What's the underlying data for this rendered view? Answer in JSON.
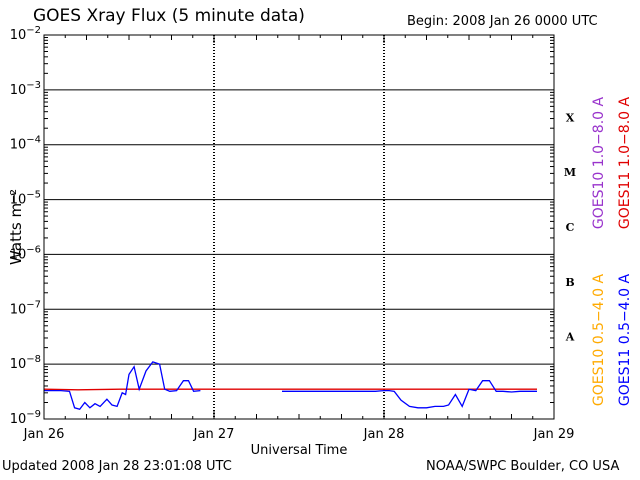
{
  "header": {
    "title": "GOES Xray Flux (5 minute data)",
    "begin": "Begin:  2008 Jan 26 0000 UTC"
  },
  "footer": {
    "updated": "Updated 2008 Jan 28 23:01:08 UTC",
    "credit": "NOAA/SWPC Boulder, CO USA"
  },
  "chart_data": {
    "type": "line",
    "xlabel": "Universal Time",
    "ylabel": "Watts m⁻²",
    "y_scale": "log",
    "ylim": [
      1e-09,
      0.01
    ],
    "xlim": [
      0,
      3
    ],
    "x_ticks": [
      {
        "x": 0,
        "label": "Jan 26"
      },
      {
        "x": 1,
        "label": "Jan 27"
      },
      {
        "x": 2,
        "label": "Jan 28"
      },
      {
        "x": 3,
        "label": "Jan 29"
      }
    ],
    "y_ticks": [
      {
        "exp": -2,
        "base": "10",
        "sup": "−2"
      },
      {
        "exp": -3,
        "base": "10",
        "sup": "−3"
      },
      {
        "exp": -4,
        "base": "10",
        "sup": "−4"
      },
      {
        "exp": -5,
        "base": "10",
        "sup": "−5"
      },
      {
        "exp": -6,
        "base": "10",
        "sup": "−6"
      },
      {
        "exp": -7,
        "base": "10",
        "sup": "−7"
      },
      {
        "exp": -8,
        "base": "10",
        "sup": "−8"
      },
      {
        "exp": -9,
        "base": "10",
        "sup": "−9"
      }
    ],
    "flare_classes": [
      {
        "label": "X",
        "exp": -4
      },
      {
        "label": "M",
        "exp": -5
      },
      {
        "label": "C",
        "exp": -6
      },
      {
        "label": "B",
        "exp": -7
      },
      {
        "label": "A",
        "exp": -8
      }
    ],
    "legend": [
      {
        "label": "GOES10 1.0−8.0 A",
        "color": "#9933cc"
      },
      {
        "label": "GOES11 1.0−8.0 A",
        "color": "#e00000"
      },
      {
        "label": "GOES10 0.5−4.0 A",
        "color": "#ffaa00"
      },
      {
        "label": "GOES11 0.5−4.0 A",
        "color": "#0000ff"
      }
    ],
    "series": [
      {
        "name": "GOES11 1.0−8.0 A",
        "color": "#e00000",
        "x": [
          0.0,
          0.2,
          0.45,
          0.8,
          1.2,
          1.6,
          2.0,
          2.4,
          2.9
        ],
        "y": [
          3.5e-09,
          3.4e-09,
          3.5e-09,
          3.5e-09,
          3.5e-09,
          3.5e-09,
          3.5e-09,
          3.5e-09,
          3.5e-09
        ]
      },
      {
        "name": "GOES11 0.5−4.0 A",
        "color": "#0000ff",
        "x": [
          0.0,
          0.05,
          0.1,
          0.15,
          0.18,
          0.21,
          0.24,
          0.27,
          0.3,
          0.33,
          0.37,
          0.4,
          0.43,
          0.46,
          0.48,
          0.5,
          0.53,
          0.56,
          0.6,
          0.64,
          0.68,
          0.71,
          0.74,
          0.78,
          0.82,
          0.85,
          0.88,
          0.92,
          0.95,
          0.98,
          1.0,
          1.05,
          1.1,
          1.15,
          1.2,
          1.25,
          1.3,
          1.35,
          1.4,
          1.45,
          1.5,
          1.55,
          1.6,
          1.65,
          1.7,
          1.75,
          1.8,
          1.85,
          1.9,
          1.95,
          2.0,
          2.03,
          2.06,
          2.1,
          2.15,
          2.2,
          2.25,
          2.3,
          2.35,
          2.38,
          2.42,
          2.46,
          2.5,
          2.54,
          2.58,
          2.62,
          2.66,
          2.7,
          2.75,
          2.8,
          2.85,
          2.9
        ],
        "y": [
          3.3e-09,
          3.3e-09,
          3.3e-09,
          3.2e-09,
          1.6e-09,
          1.5e-09,
          2e-09,
          1.6e-09,
          1.9e-09,
          1.7e-09,
          2.3e-09,
          1.8e-09,
          1.7e-09,
          3e-09,
          2.8e-09,
          6.5e-09,
          9e-09,
          3.5e-09,
          7.5e-09,
          1.1e-08,
          1e-08,
          3.5e-09,
          3.2e-09,
          3.3e-09,
          5e-09,
          5e-09,
          3.2e-09,
          3.3e-09,
          null,
          null,
          null,
          null,
          null,
          null,
          null,
          null,
          null,
          null,
          3.2e-09,
          3.2e-09,
          3.2e-09,
          3.2e-09,
          3.2e-09,
          3.2e-09,
          3.2e-09,
          3.2e-09,
          3.2e-09,
          3.2e-09,
          3.2e-09,
          3.2e-09,
          3.3e-09,
          3.3e-09,
          3.2e-09,
          2.2e-09,
          1.7e-09,
          1.6e-09,
          1.6e-09,
          1.7e-09,
          1.7e-09,
          1.8e-09,
          2.8e-09,
          1.7e-09,
          3.5e-09,
          3.3e-09,
          5e-09,
          5e-09,
          3.2e-09,
          3.2e-09,
          3.1e-09,
          3.2e-09,
          3.2e-09,
          3.2e-09
        ]
      }
    ]
  }
}
